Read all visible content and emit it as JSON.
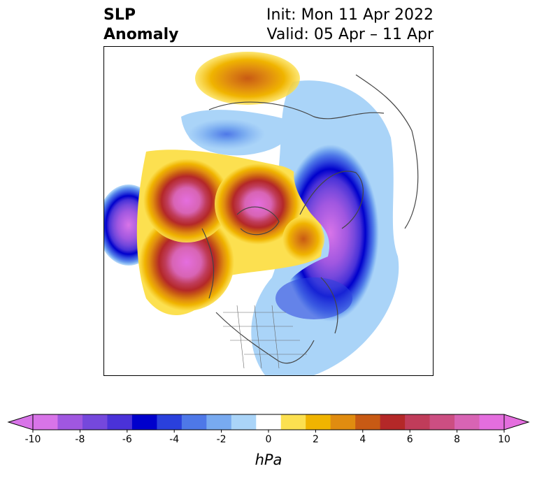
{
  "header": {
    "title_line1": "SLP",
    "title_line2": "Anomaly",
    "init_text": "Init: Mon 11 Apr 2022",
    "valid_text": "Valid: 05 Apr – 11 Apr"
  },
  "colorbar": {
    "unit": "hPa",
    "ticks": [
      "-10",
      "-8",
      "-6",
      "-4",
      "-2",
      "0",
      "2",
      "4",
      "6",
      "8",
      "10"
    ],
    "colors": [
      "#d874e8",
      "#a057e0",
      "#7548dc",
      "#4a32d8",
      "#0000cc",
      "#2a40dc",
      "#4e78e8",
      "#78aaf0",
      "#aad4f8",
      "#ffffff",
      "#fce050",
      "#f0b400",
      "#e08c10",
      "#c85a14",
      "#b42828",
      "#c03c5a",
      "#cc4e82",
      "#d864b4",
      "#e46ede"
    ],
    "extend": "both"
  },
  "map": {
    "projection": "north-polar-stereographic",
    "anomaly_centers": [
      {
        "name": "North Pacific high",
        "sign": "positive"
      },
      {
        "name": "Gulf of Alaska high",
        "sign": "positive"
      },
      {
        "name": "Arctic high",
        "sign": "positive"
      },
      {
        "name": "Greenland/North Atlantic low",
        "sign": "negative"
      },
      {
        "name": "Scandinavian high",
        "sign": "positive"
      },
      {
        "name": "Central Asia low",
        "sign": "negative"
      },
      {
        "name": "Eastern North America low",
        "sign": "negative"
      }
    ]
  }
}
